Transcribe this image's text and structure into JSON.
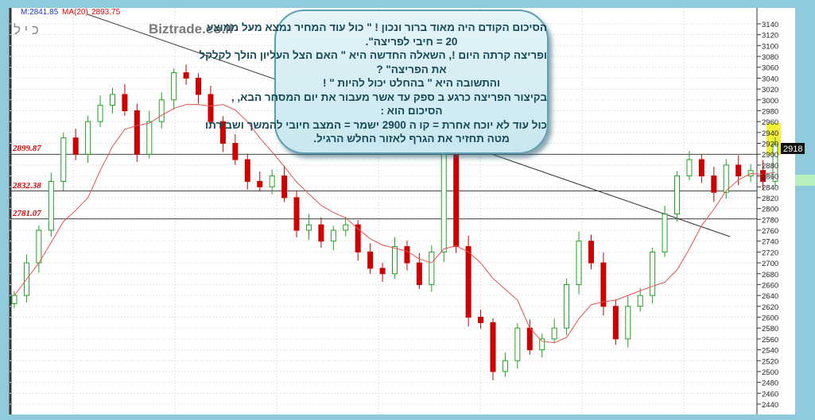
{
  "header": {
    "m_label": "M:2841.85",
    "ma_label": "MA(20)",
    "ma_value": "2893.75",
    "symbol": "כ י ל",
    "brand": "Biztrade.co.il"
  },
  "levels": [
    "2899.87",
    "2832.38",
    "2781.07"
  ],
  "last_price": "2918",
  "annotation": [
    "הסיכום  הקודם  היה  מאוד  ברור  ונכון ! \" כול עוד  המחיר  נמצא  מעל  ממוצע",
    "20  =  חיבי לפריצה\".",
    "ופריצה   קרתה  היום !, השאלה  החדשה היא  \" האם הצל העליון  הולך לקלקל",
    "את  הפריצה\" ?",
    "והתשובה  היא  \"  בהחלט יכול להיות \" !",
    "בקיצור  הפריצה  כרגע   ב ספק  עד  אשר  מעבור  את יום המסחר  הבא, ,",
    "הסיכום  הוא :",
    "כול עוד  לא  יוכח  אחרת = קו ה 2900  ישמר =  המצב  חיובי להמשך ושבירתו",
    "מטה  תחזיר  את הגרף  לאזור  החלש  הרגיל."
  ],
  "colors": {
    "up": "#1fa31f",
    "down": "#cc0000",
    "ma": "#e85050",
    "highlight": "#f3f03a"
  },
  "chart_data": {
    "type": "candlestick",
    "ylim": [
      2440,
      3140
    ],
    "yticks": [
      2440,
      2460,
      2480,
      2500,
      2520,
      2540,
      2560,
      2580,
      2600,
      2620,
      2640,
      2660,
      2680,
      2700,
      2720,
      2740,
      2760,
      2780,
      2800,
      2820,
      2840,
      2860,
      2880,
      2900,
      2920,
      2940,
      2960,
      2980,
      3000,
      3020,
      3040,
      3060,
      3080,
      3100,
      3120,
      3140
    ],
    "closes": [
      2640,
      2700,
      2760,
      2850,
      2930,
      2900,
      2960,
      2990,
      3010,
      2980,
      2900,
      2960,
      3000,
      3050,
      3040,
      3010,
      2960,
      2920,
      2890,
      2850,
      2840,
      2860,
      2820,
      2760,
      2770,
      2740,
      2760,
      2770,
      2720,
      2690,
      2680,
      2730,
      2700,
      2660,
      2720,
      2900,
      2730,
      2600,
      2590,
      2500,
      2520,
      2580,
      2540,
      2560,
      2580,
      2660,
      2740,
      2700,
      2620,
      2560,
      2620,
      2640,
      2720,
      2790,
      2860,
      2890,
      2860,
      2830,
      2880,
      2860,
      2870,
      2850,
      2918
    ],
    "levels": [
      2899.87,
      2832.38,
      2781.07
    ]
  }
}
